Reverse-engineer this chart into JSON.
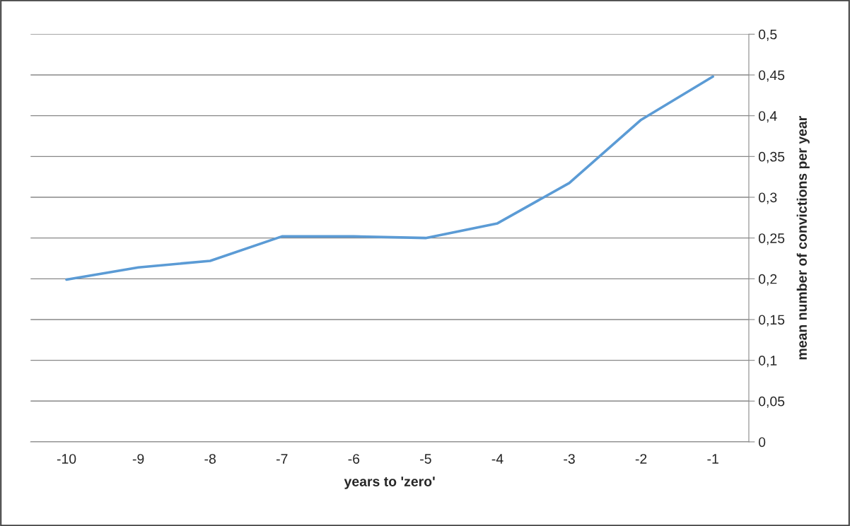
{
  "chart_data": {
    "type": "line",
    "xlabel": "years to 'zero'",
    "ylabel": "mean number of convictions per year",
    "categories": [
      "-10",
      "-9",
      "-8",
      "-7",
      "-6",
      "-5",
      "-4",
      "-3",
      "-2",
      "-1"
    ],
    "series": [
      {
        "color": "#5b9bd5",
        "values": [
          0.199,
          0.214,
          0.222,
          0.252,
          0.252,
          0.25,
          0.268,
          0.3175,
          0.395,
          0.448
        ]
      }
    ],
    "ylim": [
      0,
      0.5
    ],
    "yticks": [
      0,
      {
        "value": 0.05,
        "label": "0,05"
      },
      {
        "value": 0.1,
        "label": "0,1"
      },
      {
        "value": 0.15,
        "label": "0,15"
      },
      {
        "value": 0.2,
        "label": "0,2"
      },
      {
        "value": 0.25,
        "label": "0,25"
      },
      {
        "value": 0.3,
        "label": "0,3"
      },
      {
        "value": 0.35,
        "label": "0,35"
      },
      {
        "value": 0.4,
        "label": "0,4"
      },
      {
        "value": 0.45,
        "label": "0,45"
      },
      {
        "value": 0.5,
        "label": "0,5"
      }
    ],
    "grid": "y",
    "marker": "none",
    "line_style": "solid"
  }
}
